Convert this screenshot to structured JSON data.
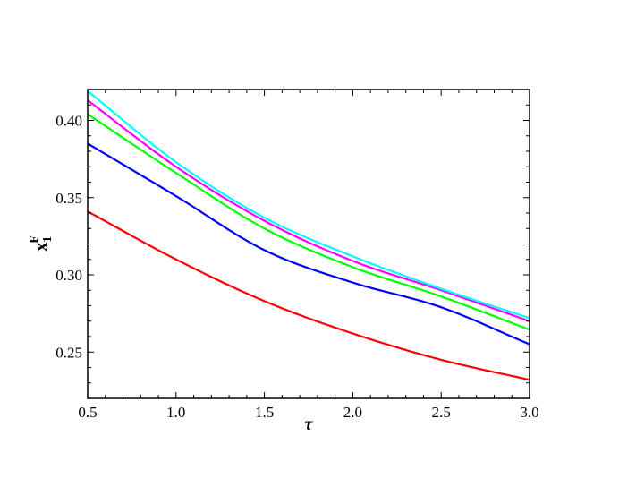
{
  "chart_data": {
    "type": "line",
    "title": "",
    "xlabel": "τ",
    "ylabel": {
      "base": "x",
      "subscript": "1",
      "superscript": "F"
    },
    "xlim": [
      0.5,
      3.0
    ],
    "ylim": [
      0.22,
      0.42
    ],
    "xticks": [
      0.5,
      1.0,
      1.5,
      2.0,
      2.5,
      3.0
    ],
    "xtick_labels": [
      "0.5",
      "1.0",
      "1.5",
      "2.0",
      "2.5",
      "3.0"
    ],
    "yticks": [
      0.25,
      0.3,
      0.35,
      0.4
    ],
    "ytick_labels": [
      "0.25",
      "0.30",
      "0.35",
      "0.40"
    ],
    "grid": false,
    "x": [
      0.5,
      1.0,
      1.5,
      2.0,
      2.5,
      3.0
    ],
    "series": [
      {
        "color": "#ff0000",
        "values": [
          0.341,
          0.31,
          0.283,
          0.262,
          0.245,
          0.232
        ]
      },
      {
        "color": "#0000ff",
        "values": [
          0.385,
          0.351,
          0.316,
          0.295,
          0.279,
          0.255
        ]
      },
      {
        "color": "#00ff00",
        "values": [
          0.404,
          0.366,
          0.33,
          0.305,
          0.286,
          0.2645
        ]
      },
      {
        "color": "#ff00ff",
        "values": [
          0.413,
          0.37,
          0.335,
          0.309,
          0.29,
          0.27
        ]
      },
      {
        "color": "#00ffff",
        "values": [
          0.419,
          0.373,
          0.337,
          0.312,
          0.291,
          0.272
        ]
      }
    ]
  }
}
